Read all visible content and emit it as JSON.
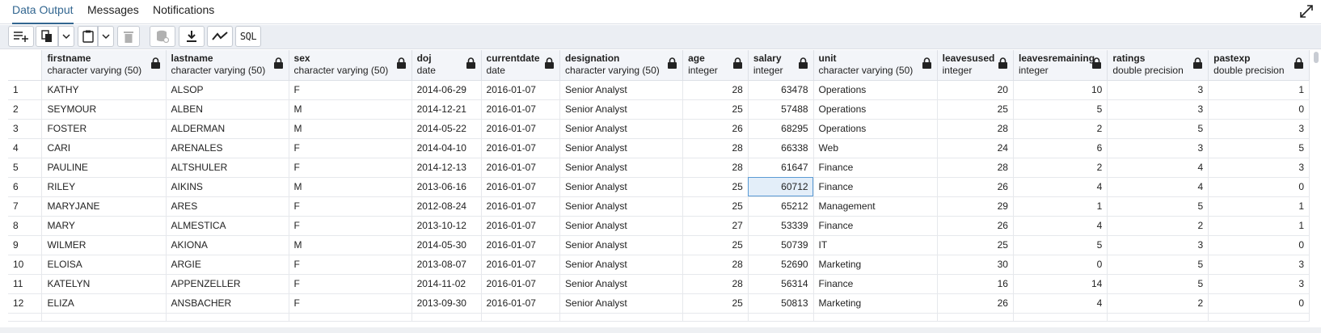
{
  "tabs": {
    "data_output": "Data Output",
    "messages": "Messages",
    "notifications": "Notifications"
  },
  "toolbar": {
    "sql_label": "SQL",
    "icons": [
      "add-row-icon",
      "copy-icon",
      "chevron-down-icon",
      "paste-icon",
      "chevron-down-icon",
      "delete-icon",
      "save-data-icon",
      "download-icon",
      "graph-icon"
    ]
  },
  "colors": {
    "accent": "#326690",
    "header_bg": "#f3f5f9",
    "toolbar_bg": "#ebeef3",
    "selected_cell": "#e3eef9"
  },
  "grid": {
    "columns": [
      {
        "name": "firstname",
        "type": "character varying (50)"
      },
      {
        "name": "lastname",
        "type": "character varying (50)"
      },
      {
        "name": "sex",
        "type": "character varying (50)"
      },
      {
        "name": "doj",
        "type": "date"
      },
      {
        "name": "currentdate",
        "type": "date"
      },
      {
        "name": "designation",
        "type": "character varying (50)"
      },
      {
        "name": "age",
        "type": "integer"
      },
      {
        "name": "salary",
        "type": "integer"
      },
      {
        "name": "unit",
        "type": "character varying (50)"
      },
      {
        "name": "leavesused",
        "type": "integer"
      },
      {
        "name": "leavesremaining",
        "type": "integer"
      },
      {
        "name": "ratings",
        "type": "double precision"
      },
      {
        "name": "pastexp",
        "type": "double precision"
      }
    ],
    "rows": [
      [
        "1",
        "KATHY",
        "ALSOP",
        "F",
        "2014-06-29",
        "2016-01-07",
        "Senior Analyst",
        "28",
        "63478",
        "Operations",
        "20",
        "10",
        "3",
        "1"
      ],
      [
        "2",
        "SEYMOUR",
        "ALBEN",
        "M",
        "2014-12-21",
        "2016-01-07",
        "Senior Analyst",
        "25",
        "57488",
        "Operations",
        "25",
        "5",
        "3",
        "0"
      ],
      [
        "3",
        "FOSTER",
        "ALDERMAN",
        "M",
        "2014-05-22",
        "2016-01-07",
        "Senior Analyst",
        "26",
        "68295",
        "Operations",
        "28",
        "2",
        "5",
        "3"
      ],
      [
        "4",
        "CARI",
        "ARENALES",
        "F",
        "2014-04-10",
        "2016-01-07",
        "Senior Analyst",
        "28",
        "66338",
        "Web",
        "24",
        "6",
        "3",
        "5"
      ],
      [
        "5",
        "PAULINE",
        "ALTSHULER",
        "F",
        "2014-12-13",
        "2016-01-07",
        "Senior Analyst",
        "28",
        "61647",
        "Finance",
        "28",
        "2",
        "4",
        "3"
      ],
      [
        "6",
        "RILEY",
        "AIKINS",
        "M",
        "2013-06-16",
        "2016-01-07",
        "Senior Analyst",
        "25",
        "60712",
        "Finance",
        "26",
        "4",
        "4",
        "0"
      ],
      [
        "7",
        "MARYJANE",
        "ARES",
        "F",
        "2012-08-24",
        "2016-01-07",
        "Senior Analyst",
        "25",
        "65212",
        "Management",
        "29",
        "1",
        "5",
        "1"
      ],
      [
        "8",
        "MARY",
        "ALMESTICA",
        "F",
        "2013-10-12",
        "2016-01-07",
        "Senior Analyst",
        "27",
        "53339",
        "Finance",
        "26",
        "4",
        "2",
        "1"
      ],
      [
        "9",
        "WILMER",
        "AKIONA",
        "M",
        "2014-05-30",
        "2016-01-07",
        "Senior Analyst",
        "25",
        "50739",
        "IT",
        "25",
        "5",
        "3",
        "0"
      ],
      [
        "10",
        "ELOISA",
        "ARGIE",
        "F",
        "2013-08-07",
        "2016-01-07",
        "Senior Analyst",
        "28",
        "52690",
        "Marketing",
        "30",
        "0",
        "5",
        "3"
      ],
      [
        "11",
        "KATELYN",
        "APPENZELLER",
        "F",
        "2014-11-02",
        "2016-01-07",
        "Senior Analyst",
        "28",
        "56314",
        "Finance",
        "16",
        "14",
        "5",
        "3"
      ],
      [
        "12",
        "ELIZA",
        "ANSBACHER",
        "F",
        "2013-09-30",
        "2016-01-07",
        "Senior Analyst",
        "25",
        "50813",
        "Marketing",
        "26",
        "4",
        "2",
        "0"
      ]
    ]
  }
}
